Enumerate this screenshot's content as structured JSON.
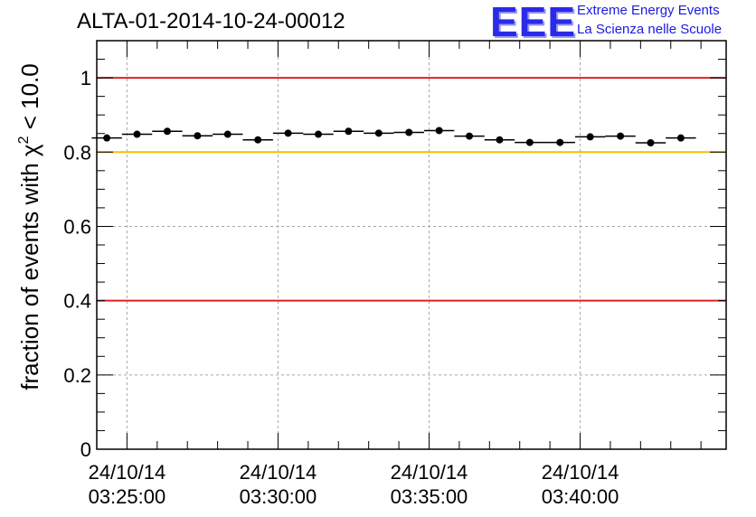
{
  "header": {
    "title": "ALTA-01-2014-10-24-00012"
  },
  "logo": {
    "mark": "EEE",
    "line1": "Extreme Energy Events",
    "line2": "La Scienza nelle Scuole",
    "color": "#2a2ae8"
  },
  "chart_data": {
    "type": "scatter",
    "ylabel": "fraction of events with χ² < 10.0",
    "ylabel_main": "fraction of events with ",
    "ylabel_chi": "χ",
    "ylabel_sup": "2",
    "ylabel_tail": " < 10.0",
    "xlim": [
      "2014-10-24 03:24:00",
      "2014-10-24 03:44:50"
    ],
    "ylim": [
      0,
      1.1
    ],
    "yticks": [
      {
        "value": 0,
        "label": "0"
      },
      {
        "value": 0.2,
        "label": "0.2"
      },
      {
        "value": 0.4,
        "label": "0.4"
      },
      {
        "value": 0.6,
        "label": "0.6"
      },
      {
        "value": 0.8,
        "label": "0.8"
      },
      {
        "value": 1,
        "label": "1"
      }
    ],
    "xticks": [
      {
        "value": "2014-10-24 03:25:00",
        "date": "24/10/14",
        "time": "03:25:00"
      },
      {
        "value": "2014-10-24 03:30:00",
        "date": "24/10/14",
        "time": "03:30:00"
      },
      {
        "value": "2014-10-24 03:35:00",
        "date": "24/10/14",
        "time": "03:35:00"
      },
      {
        "value": "2014-10-24 03:40:00",
        "date": "24/10/14",
        "time": "03:40:00"
      }
    ],
    "grid": true,
    "reference_lines": [
      {
        "y": 1.0,
        "color": "#e02020"
      },
      {
        "y": 0.8,
        "color": "#f5c000"
      },
      {
        "y": 0.4,
        "color": "#e02020"
      }
    ],
    "series": [
      {
        "color": "#000000",
        "points": [
          {
            "x": "2014-10-24 03:24:20",
            "y": 0.838
          },
          {
            "x": "2014-10-24 03:25:20",
            "y": 0.848
          },
          {
            "x": "2014-10-24 03:26:20",
            "y": 0.856
          },
          {
            "x": "2014-10-24 03:27:20",
            "y": 0.844
          },
          {
            "x": "2014-10-24 03:28:20",
            "y": 0.848
          },
          {
            "x": "2014-10-24 03:29:20",
            "y": 0.833
          },
          {
            "x": "2014-10-24 03:30:20",
            "y": 0.851
          },
          {
            "x": "2014-10-24 03:31:20",
            "y": 0.848
          },
          {
            "x": "2014-10-24 03:32:20",
            "y": 0.856
          },
          {
            "x": "2014-10-24 03:33:20",
            "y": 0.851
          },
          {
            "x": "2014-10-24 03:34:20",
            "y": 0.853
          },
          {
            "x": "2014-10-24 03:35:20",
            "y": 0.858
          },
          {
            "x": "2014-10-24 03:36:20",
            "y": 0.843
          },
          {
            "x": "2014-10-24 03:37:20",
            "y": 0.833
          },
          {
            "x": "2014-10-24 03:38:20",
            "y": 0.826
          },
          {
            "x": "2014-10-24 03:39:20",
            "y": 0.826
          },
          {
            "x": "2014-10-24 03:40:20",
            "y": 0.841
          },
          {
            "x": "2014-10-24 03:41:20",
            "y": 0.843
          },
          {
            "x": "2014-10-24 03:42:20",
            "y": 0.825
          },
          {
            "x": "2014-10-24 03:43:20",
            "y": 0.838
          }
        ]
      }
    ]
  }
}
